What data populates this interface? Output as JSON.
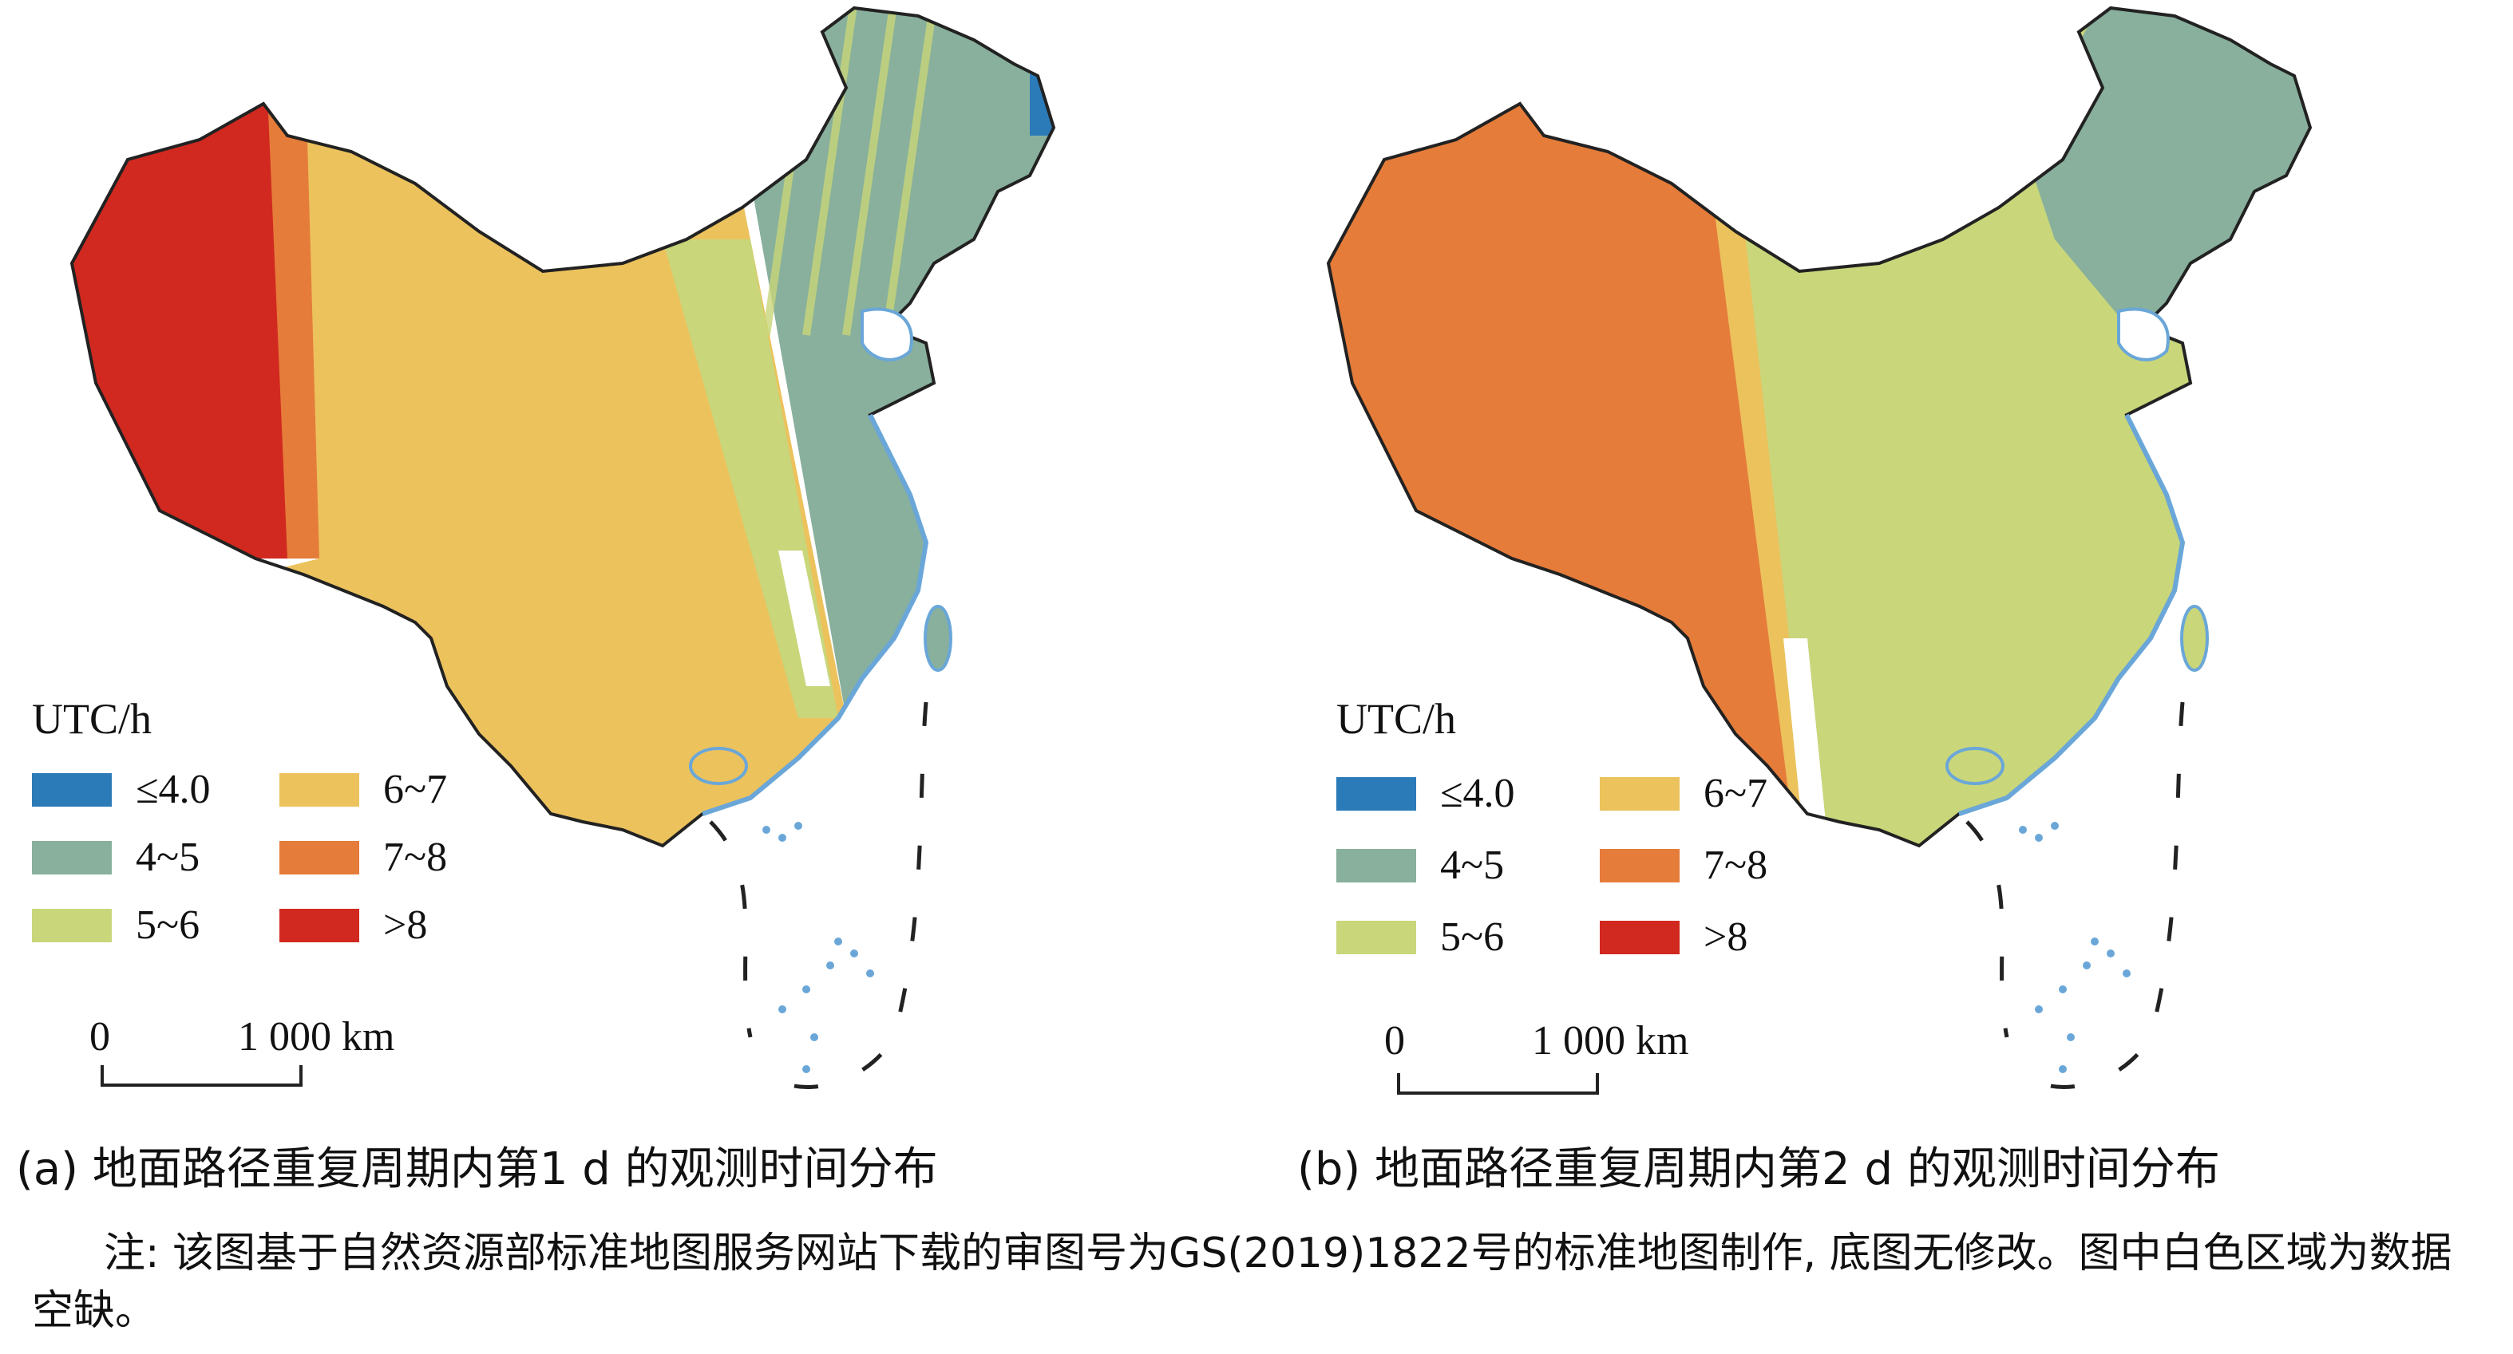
{
  "panels": [
    {
      "id": "a",
      "caption": "(a) 地面路径重复周期内第1 d 的观测时间分布",
      "legend_title": "UTC/h",
      "legend": [
        {
          "label": "≤4.0",
          "color": "#2b7bb9"
        },
        {
          "label": "4~5",
          "color": "#88b09d"
        },
        {
          "label": "5~6",
          "color": "#c9d67a"
        },
        {
          "label": "6~7",
          "color": "#ecc25d"
        },
        {
          "label": "7~8",
          "color": "#e57c3a"
        },
        {
          "label": ">8",
          "color": "#d1291f"
        }
      ],
      "scale_zero": "0",
      "scale_label": "1 000 km"
    },
    {
      "id": "b",
      "caption": "(b) 地面路径重复周期内第2 d 的观测时间分布",
      "legend_title": "UTC/h",
      "legend": [
        {
          "label": "≤4.0",
          "color": "#2b7bb9"
        },
        {
          "label": "4~5",
          "color": "#88b09d"
        },
        {
          "label": "5~6",
          "color": "#c9d67a"
        },
        {
          "label": "6~7",
          "color": "#ecc25d"
        },
        {
          "label": "7~8",
          "color": "#e57c3a"
        },
        {
          "label": ">8",
          "color": "#d1291f"
        }
      ],
      "scale_zero": "0",
      "scale_label": "1 000 km"
    }
  ],
  "note": "注: 该图基于自然资源部标准地图服务网站下载的审图号为GS(2019)1822号的标准地图制作, 底图无修改。图中白色区域为数据空缺。",
  "colors": {
    "coast": "#6aa7d8",
    "border": "#222222",
    "nodata": "#ffffff"
  }
}
